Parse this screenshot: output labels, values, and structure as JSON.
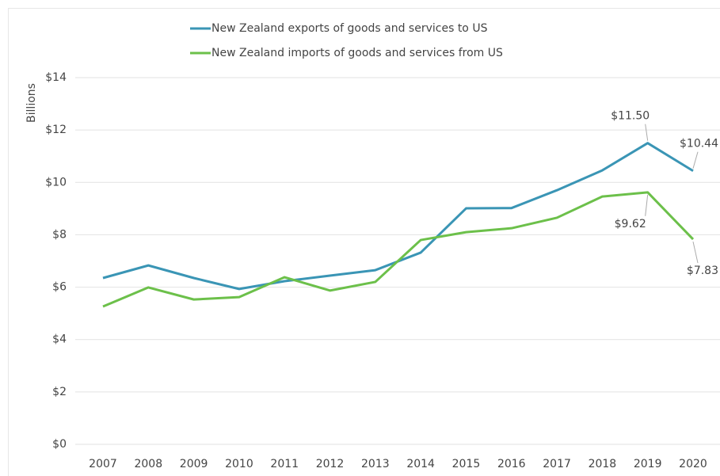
{
  "chart_data": {
    "type": "line",
    "y_axis_label": "Billions",
    "categories": [
      "2007",
      "2008",
      "2009",
      "2010",
      "2011",
      "2012",
      "2013",
      "2014",
      "2015",
      "2016",
      "2017",
      "2018",
      "2019",
      "2020"
    ],
    "series": [
      {
        "name": "New Zealand exports of goods and services to US",
        "color": "#3a95b5",
        "values": [
          6.35,
          6.83,
          6.35,
          5.93,
          6.23,
          6.44,
          6.65,
          7.32,
          9.01,
          9.02,
          9.7,
          10.46,
          11.5,
          10.44
        ],
        "value_labels": [
          null,
          null,
          null,
          null,
          null,
          null,
          null,
          null,
          null,
          null,
          null,
          null,
          "$11.50",
          "$10.44"
        ]
      },
      {
        "name": "New Zealand imports of goods and services from US",
        "color": "#6cc04a",
        "values": [
          5.26,
          5.99,
          5.53,
          5.62,
          6.38,
          5.87,
          6.2,
          7.8,
          8.1,
          8.25,
          8.65,
          9.46,
          9.62,
          7.83
        ],
        "value_labels": [
          null,
          null,
          null,
          null,
          null,
          null,
          null,
          null,
          null,
          null,
          null,
          null,
          "$9.62",
          "$7.83"
        ]
      }
    ],
    "ylim": [
      0,
      14
    ],
    "yticks": [
      {
        "value": 0,
        "label": "$0"
      },
      {
        "value": 2,
        "label": "$2"
      },
      {
        "value": 4,
        "label": "$4"
      },
      {
        "value": 6,
        "label": "$6"
      },
      {
        "value": 8,
        "label": "$8"
      },
      {
        "value": 10,
        "label": "$10"
      },
      {
        "value": 12,
        "label": "$12"
      },
      {
        "value": 14,
        "label": "$14"
      }
    ],
    "grid": true,
    "legend": "top"
  }
}
